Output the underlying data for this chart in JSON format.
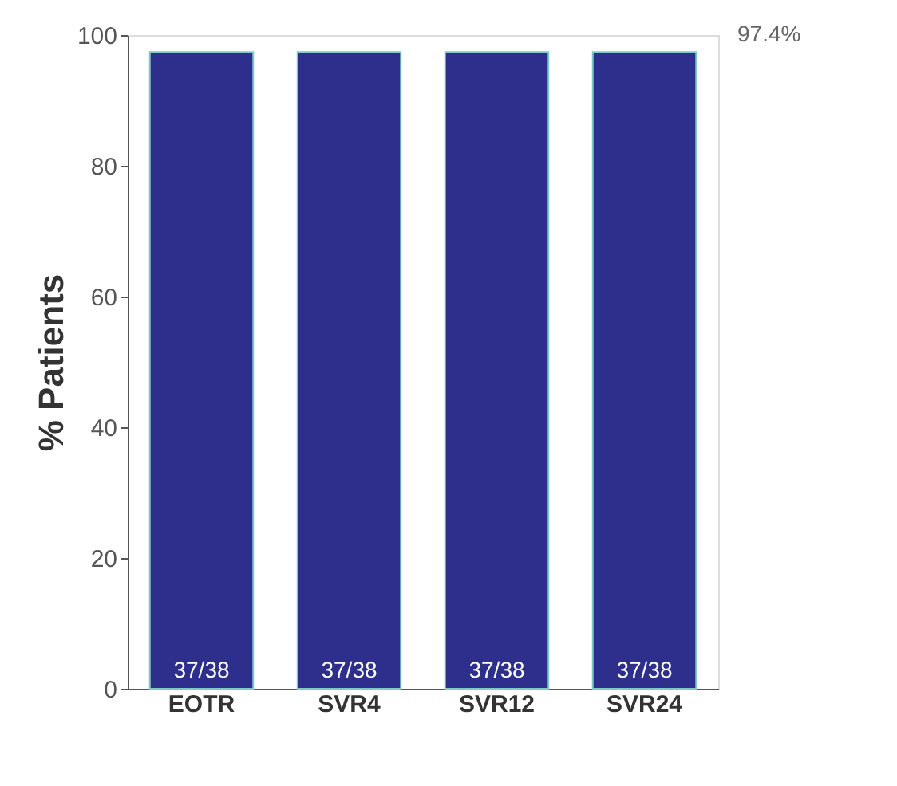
{
  "chart_data": {
    "type": "bar",
    "ylabel": "% Patients",
    "categories": [
      "EOTR",
      "SVR4",
      "SVR12",
      "SVR24"
    ],
    "values": [
      97.4,
      97.4,
      97.4,
      97.4
    ],
    "value_labels": [
      "37/38",
      "37/38",
      "37/38",
      "37/38"
    ],
    "color": "#2e2e8c",
    "ylim": [
      0,
      100
    ],
    "yticks": [
      0,
      20,
      40,
      60,
      80,
      100
    ],
    "grid": false,
    "annotations": [
      "97.4%"
    ]
  }
}
